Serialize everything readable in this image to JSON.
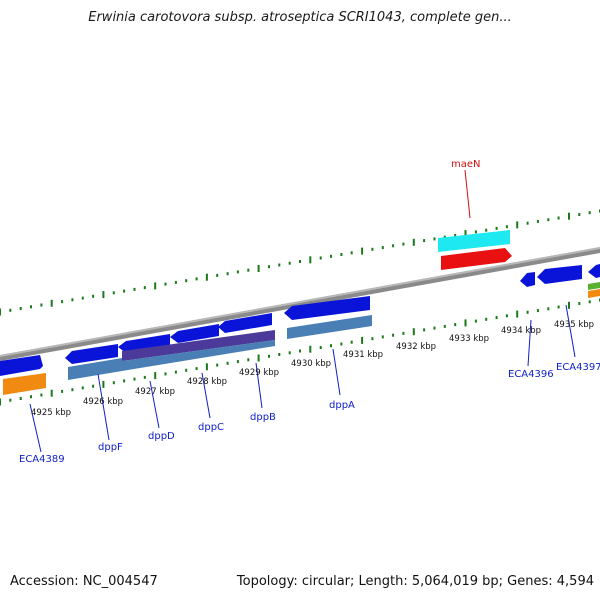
{
  "header": {
    "title": "Erwinia carotovora subsp. atroseptica SCRI1043, complete gen..."
  },
  "footer": {
    "accession": "Accession: NC_004547",
    "summary": "Topology: circular; Length: 5,064,019 bp; Genes: 4,594"
  },
  "colors": {
    "backbone": "#8a8a8a",
    "forward_gene": "#0a14d8",
    "forward_cds": "#1ee8f0",
    "forward_special": "#e81010",
    "reverse_gene": "#1a1ad8",
    "reverse_cds": "#4a7fb6",
    "reverse_cds_alt": "#4b3a9a",
    "orange_feature": "#f08a10",
    "green_feature": "#5ab030",
    "tick": "#1a7a1a",
    "label_blue": "#1020c8",
    "label_red": "#d01010"
  },
  "map": {
    "scale_labels": [
      "4925 kbp",
      "4926 kbp",
      "4927 kbp",
      "4928 kbp",
      "4929 kbp",
      "4930 kbp",
      "4931 kbp",
      "4932 kbp",
      "4933 kbp",
      "4934 kbp",
      "4935 kbp"
    ],
    "gene_labels": [
      {
        "label": "ECA4389",
        "strand": "reverse"
      },
      {
        "label": "dppF",
        "strand": "reverse"
      },
      {
        "label": "dppD",
        "strand": "reverse"
      },
      {
        "label": "dppC",
        "strand": "reverse"
      },
      {
        "label": "dppB",
        "strand": "reverse"
      },
      {
        "label": "dppA",
        "strand": "reverse"
      },
      {
        "label": "maeN",
        "strand": "forward"
      },
      {
        "label": "ECA4396",
        "strand": "reverse"
      },
      {
        "label": "ECA4397",
        "strand": "reverse"
      }
    ]
  }
}
